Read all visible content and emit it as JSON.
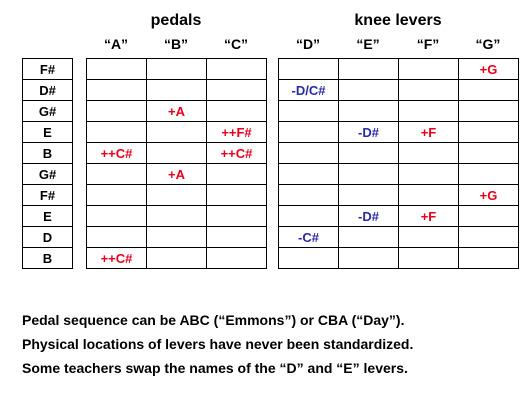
{
  "headers": {
    "pedals_title": "pedals",
    "knee_title": "knee levers",
    "pedal_cols": [
      "“A”",
      "“B”",
      "“C”"
    ],
    "knee_cols": [
      "“D”",
      "“E”",
      "“F”",
      "“G”"
    ]
  },
  "strings": [
    "F#",
    "D#",
    "G#",
    "E",
    "B",
    "G#",
    "F#",
    "E",
    "D",
    "B"
  ],
  "pedals": [
    [
      "",
      "",
      ""
    ],
    [
      "",
      "",
      ""
    ],
    [
      "",
      "+A",
      ""
    ],
    [
      "",
      "",
      "++F#"
    ],
    [
      "++C#",
      "",
      "++C#"
    ],
    [
      "",
      "+A",
      ""
    ],
    [
      "",
      "",
      ""
    ],
    [
      "",
      "",
      ""
    ],
    [
      "",
      "",
      ""
    ],
    [
      "++C#",
      "",
      ""
    ]
  ],
  "knees": [
    [
      "",
      "",
      "",
      "+G"
    ],
    [
      "-D/C#",
      "",
      "",
      ""
    ],
    [
      "",
      "",
      "",
      ""
    ],
    [
      "",
      "-D#",
      "+F",
      ""
    ],
    [
      "",
      "",
      "",
      ""
    ],
    [
      "",
      "",
      "",
      ""
    ],
    [
      "",
      "",
      "",
      "+G"
    ],
    [
      "",
      "-D#",
      "+F",
      ""
    ],
    [
      "-C#",
      "",
      "",
      ""
    ],
    [
      "",
      "",
      "",
      ""
    ]
  ],
  "notes": [
    "Pedal sequence can be ABC (“Emmons”) or CBA (“Day”).",
    "Physical locations of levers have never been standardized.",
    "Some teachers swap the names of the “D” and “E” levers."
  ],
  "colors": {
    "raise": "#e8001c",
    "lower": "#2a2aa8"
  }
}
